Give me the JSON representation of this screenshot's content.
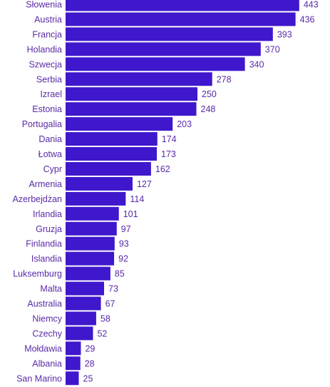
{
  "chart_data": {
    "type": "bar",
    "orientation": "horizontal",
    "categories": [
      "Słowenia",
      "Austria",
      "Francja",
      "Holandia",
      "Szwecja",
      "Serbia",
      "Izrael",
      "Estonia",
      "Portugalia",
      "Dania",
      "Łotwa",
      "Cypr",
      "Armenia",
      "Azerbejdżan",
      "Irlandia",
      "Gruzja",
      "Finlandia",
      "Islandia",
      "Luksemburg",
      "Malta",
      "Australia",
      "Niemcy",
      "Czechy",
      "Mołdawia",
      "Albania",
      "San Marino"
    ],
    "values": [
      443,
      436,
      393,
      370,
      340,
      278,
      250,
      248,
      203,
      174,
      173,
      162,
      127,
      114,
      101,
      97,
      93,
      92,
      85,
      73,
      67,
      58,
      52,
      29,
      28,
      25
    ],
    "colors": {
      "bar": "#3f17cc",
      "text": "#5a2aa6"
    }
  }
}
